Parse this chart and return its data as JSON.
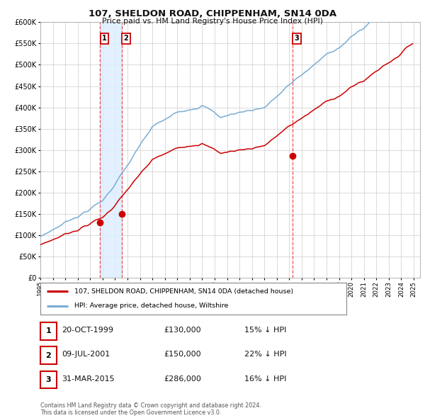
{
  "title": "107, SHELDON ROAD, CHIPPENHAM, SN14 0DA",
  "subtitle": "Price paid vs. HM Land Registry's House Price Index (HPI)",
  "legend_line1": "107, SHELDON ROAD, CHIPPENHAM, SN14 0DA (detached house)",
  "legend_line2": "HPI: Average price, detached house, Wiltshire",
  "footer1": "Contains HM Land Registry data © Crown copyright and database right 2024.",
  "footer2": "This data is licensed under the Open Government Licence v3.0.",
  "transactions": [
    {
      "num": 1,
      "date": "20-OCT-1999",
      "price": 130000,
      "hpi_diff": "15% ↓ HPI",
      "year": 1999.8
    },
    {
      "num": 2,
      "date": "09-JUL-2001",
      "price": 150000,
      "hpi_diff": "22% ↓ HPI",
      "year": 2001.54
    },
    {
      "num": 3,
      "date": "31-MAR-2015",
      "price": 286000,
      "hpi_diff": "16% ↓ HPI",
      "year": 2015.25
    }
  ],
  "hpi_color": "#7aadd4",
  "price_color": "#cc0000",
  "marker_color": "#cc0000",
  "vline_color": "#ee3333",
  "shade_color": "#ddeeff",
  "grid_color": "#cccccc",
  "bg_color": "#ffffff",
  "ylim": [
    0,
    600000
  ],
  "yticks": [
    0,
    50000,
    100000,
    150000,
    200000,
    250000,
    300000,
    350000,
    400000,
    450000,
    500000,
    550000,
    600000
  ],
  "xmin": 1995,
  "xmax": 2025.5
}
